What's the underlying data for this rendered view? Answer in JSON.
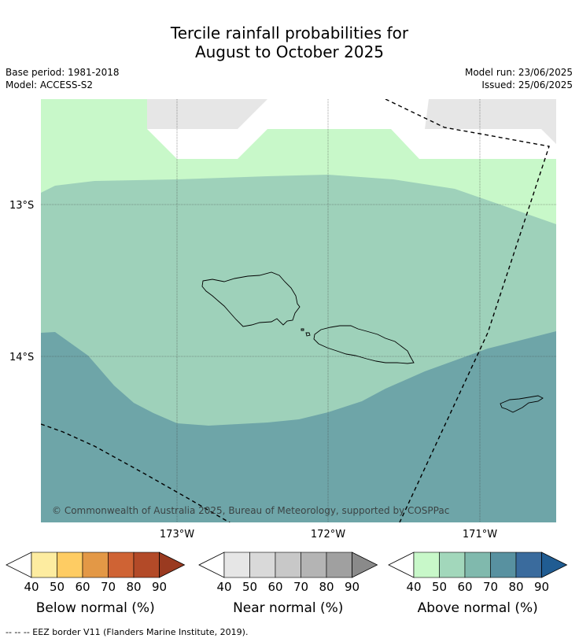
{
  "header": {
    "title_line1": "Tercile rainfall probabilities for",
    "title_line2": "August to October 2025",
    "base_period": "Base period: 1981-2018",
    "model": "Model: ACCESS-S2",
    "model_run": "Model run: 23/06/2025",
    "issued": "Issued: 25/06/2025"
  },
  "map": {
    "lat_labels": [
      "13°S",
      "14°S"
    ],
    "lon_labels": [
      "173°W",
      "172°W",
      "171°W"
    ],
    "copyright": "© Commonwealth of Australia 2025, Bureau of Meteorology, supported by COSPPac",
    "regions": [
      {
        "name": "above-normal-70-80",
        "color": "#6ea5a8"
      },
      {
        "name": "above-normal-50-60",
        "color": "#9ed1ba"
      },
      {
        "name": "above-normal-40-50",
        "color": "#c8f8c9"
      },
      {
        "name": "near-normal-40-50",
        "color": "#e6e6e6"
      }
    ]
  },
  "colorbars": [
    {
      "title": "Below normal (%)",
      "ticks": [
        "40",
        "50",
        "60",
        "70",
        "80",
        "90"
      ],
      "colors": [
        "#fdeca0",
        "#fecc63",
        "#e39846",
        "#cf6334",
        "#b34a28",
        "#9a3a20"
      ]
    },
    {
      "title": "Near normal (%)",
      "ticks": [
        "40",
        "50",
        "60",
        "70",
        "80",
        "90"
      ],
      "colors": [
        "#e6e6e6",
        "#d9d9d9",
        "#c8c8c8",
        "#b4b4b4",
        "#a0a0a0",
        "#8a8a8a"
      ]
    },
    {
      "title": "Above normal (%)",
      "ticks": [
        "40",
        "50",
        "60",
        "70",
        "80",
        "90"
      ],
      "colors": [
        "#c8f8c9",
        "#a2d7bb",
        "#80b9ad",
        "#5891a0",
        "#3a6b9d",
        "#205c92"
      ]
    }
  ],
  "footnote": "--  --  -- EEZ border V11 (Flanders Marine Institute, 2019)."
}
